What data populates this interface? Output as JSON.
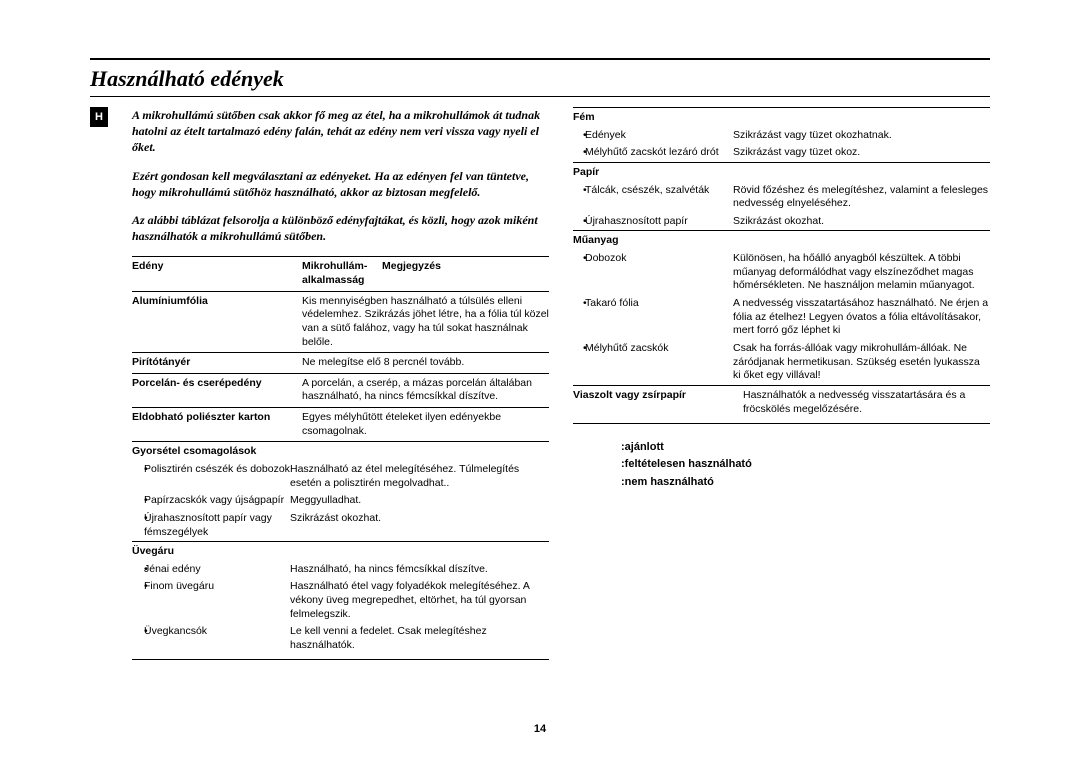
{
  "page": {
    "title": "Használható edények",
    "tab_label": "H",
    "page_number": "14"
  },
  "intro": {
    "p1": "A mikrohullámú sütőben csak akkor fő meg az étel, ha a mikrohullámok át tudnak hatolni az ételt tartalmazó edény falán, tehát az edény nem veri vissza vagy nyeli el őket.",
    "p2": "Ezért gondosan kell megválasztani az edényeket. Ha az edényen fel van tüntetve, hogy mikrohullámú sütőhöz használható, akkor az biztosan megfelelő.",
    "p3": "Az alábbi táblázat felsorolja a különböző edényfajtákat, és közli, hogy azok miként használhatók a mikrohullámú sütőben."
  },
  "table_head": {
    "c1": "Edény",
    "c2": "Mikrohullám-alkalmasság",
    "c3": "Megjegyzés"
  },
  "left_rows": [
    {
      "name": "Alumíniumfólia",
      "note": "Kis mennyiségben használható a túlsülés elleni védelemhez. Szikrázás jöhet létre, ha a fólia túl közel van a sütő falához, vagy ha túl sokat használnak belőle."
    },
    {
      "name": "Pirítótányér",
      "note": "Ne melegítse elő 8 percnél tovább."
    },
    {
      "name": "Porcelán- és cserépedény",
      "note": "A porcelán, a cserép, a mázas porcelán általában használható, ha nincs fémcsíkkal díszítve."
    },
    {
      "name": "Eldobható poliészter karton",
      "note": "Egyes mélyhűtött ételeket ilyen edényekbe csomagolnak."
    }
  ],
  "left_groups": [
    {
      "head": "Gyorsétel csomagolások",
      "items": [
        {
          "label": "Polisztirén csészék és dobozok",
          "note": "Használható az étel melegítéséhez. Túlmelegítés esetén a polisztirén megolvadhat.."
        },
        {
          "label": "Papírzacskók vagy újságpapír",
          "note": "Meggyulladhat."
        },
        {
          "label": "Újrahasznosított papír vagy fémszegélyek",
          "note": "Szikrázást okozhat."
        }
      ]
    },
    {
      "head": "Üvegáru",
      "items": [
        {
          "label": "Jénai edény",
          "note": "Használható, ha nincs fémcsíkkal díszítve."
        },
        {
          "label": "Finom üvegáru",
          "note": "Használható étel vagy folyadékok melegítéséhez. A vékony üveg megrepedhet, eltörhet, ha túl gyorsan felmelegszik."
        },
        {
          "label": "Üvegkancsók",
          "note": "Le kell venni a fedelet. Csak melegítéshez használhatók."
        }
      ]
    }
  ],
  "right_groups": [
    {
      "head": "Fém",
      "items": [
        {
          "label": "Edények",
          "note": "Szikrázást vagy tüzet okozhatnak."
        },
        {
          "label": "Mélyhűtő zacskót lezáró drót",
          "note": "Szikrázást vagy tüzet okoz."
        }
      ]
    },
    {
      "head": "Papír",
      "items": [
        {
          "label": "Tálcák, csészék, szalvéták",
          "note": "Rövid főzéshez és melegítéshez, valamint a felesleges nedvesség elnyeléséhez."
        },
        {
          "label": "Újrahasznosított papír",
          "note": "Szikrázást okozhat."
        }
      ]
    },
    {
      "head": "Műanyag",
      "items": [
        {
          "label": "Dobozok",
          "note": "Különösen, ha hőálló anyagból készültek. A többi műanyag deformálódhat vagy elszíneződhet magas hőmérsékleten. Ne használjon melamin műanyagot."
        },
        {
          "label": "Takaró fólia",
          "note": "A nedvesség visszatartásához használható. Ne érjen a fólia az ételhez! Legyen óvatos a fólia eltávolításakor, mert forró gőz léphet ki"
        },
        {
          "label": "Mélyhűtő zacskók",
          "note": "Csak ha forrás-állóak vagy mikrohullám-állóak. Ne záródjanak hermetikusan. Szükség esetén lyukassza ki őket egy villával!"
        }
      ]
    }
  ],
  "right_rows": [
    {
      "name": "Viaszolt vagy zsírpapír",
      "note": "Használhatók a nedvesség visszatartására és a fröcskölés megelőzésére."
    }
  ],
  "legend": {
    "a": ":ajánlott",
    "b": ":feltételesen használható",
    "c": ":nem használható"
  }
}
